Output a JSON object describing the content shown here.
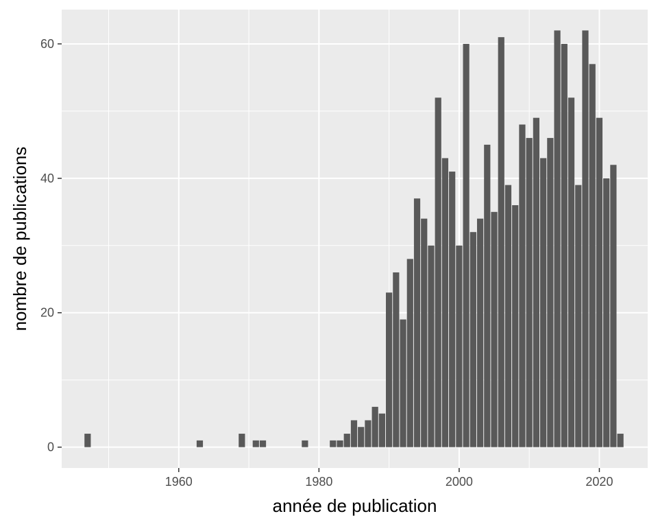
{
  "chart_data": {
    "type": "bar",
    "title": "",
    "xlabel": "année de publication",
    "ylabel": "nombre de publications",
    "xlim": [
      1943.3,
      2026.9
    ],
    "ylim": [
      -3.1,
      65.1
    ],
    "x_ticks": [
      1960,
      1980,
      2000,
      2020
    ],
    "y_ticks": [
      0,
      20,
      40,
      60
    ],
    "grid": true,
    "legend": "none",
    "colors": {
      "panel": "#ebebeb",
      "grid": "#ffffff",
      "bar": "#595959",
      "tick": "#333333"
    },
    "series": [
      {
        "x": [
          1947,
          1963,
          1969,
          1971,
          1972,
          1978,
          1982,
          1983,
          1984,
          1985,
          1986,
          1987,
          1988,
          1989,
          1990,
          1991,
          1992,
          1993,
          1994,
          1995,
          1996,
          1997,
          1998,
          1999,
          2000,
          2001,
          2002,
          2003,
          2004,
          2005,
          2006,
          2007,
          2008,
          2009,
          2010,
          2011,
          2012,
          2013,
          2014,
          2015,
          2016,
          2017,
          2018,
          2019,
          2020,
          2021,
          2022,
          2023
        ],
        "values": [
          2,
          1,
          2,
          1,
          1,
          1,
          1,
          1,
          2,
          4,
          3,
          4,
          6,
          5,
          23,
          26,
          19,
          28,
          37,
          34,
          30,
          52,
          43,
          41,
          30,
          60,
          32,
          34,
          45,
          35,
          61,
          39,
          36,
          48,
          46,
          49,
          43,
          46,
          62,
          60,
          52,
          39,
          62,
          57,
          49,
          40,
          42,
          2
        ]
      }
    ]
  }
}
